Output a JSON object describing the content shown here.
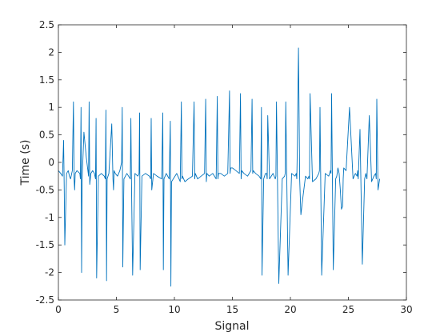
{
  "chart_data": {
    "type": "line",
    "title": "",
    "xlabel": "Signal",
    "ylabel": "Time (s)",
    "xlim": [
      0,
      30
    ],
    "ylim": [
      -2.5,
      2.5
    ],
    "xticks": [
      0,
      5,
      10,
      15,
      20,
      25,
      30
    ],
    "yticks": [
      -2.5,
      -2,
      -1.5,
      -1,
      -0.5,
      0,
      0.5,
      1,
      1.5,
      2,
      2.5
    ],
    "xtick_labels": [
      "0",
      "5",
      "10",
      "15",
      "20",
      "25",
      "30"
    ],
    "ytick_labels": [
      "-2.5",
      "-2",
      "-1.5",
      "-1",
      "-0.5",
      "0",
      "0.5",
      "1",
      "1.5",
      "2",
      "2.5"
    ],
    "grid": false,
    "line_color": "#0072bd",
    "series": [
      {
        "x": [
          0.0,
          0.2,
          0.35,
          0.45,
          0.5,
          0.55,
          0.7,
          0.85,
          0.95,
          1.05,
          1.2,
          1.3,
          1.35,
          1.4,
          1.45,
          1.6,
          1.85,
          1.9,
          1.95,
          2.0,
          2.05,
          2.2,
          2.4,
          2.6,
          2.65,
          2.7,
          2.8,
          2.95,
          3.1,
          3.2,
          3.25,
          3.3,
          3.45,
          3.7,
          3.95,
          4.05,
          4.1,
          4.15,
          4.2,
          4.35,
          4.6,
          4.7,
          4.75,
          4.8,
          4.9,
          5.1,
          5.3,
          5.45,
          5.5,
          5.55,
          5.65,
          5.9,
          6.05,
          6.2,
          6.25,
          6.3,
          6.4,
          6.6,
          6.85,
          6.95,
          7.0,
          7.05,
          7.2,
          7.5,
          7.85,
          7.95,
          8.0,
          8.05,
          8.2,
          8.5,
          8.9,
          9.0,
          9.05,
          9.1,
          9.3,
          9.55,
          9.65,
          9.7,
          9.75,
          9.9,
          10.2,
          10.5,
          10.6,
          10.65,
          10.7,
          10.9,
          11.2,
          11.55,
          11.7,
          11.75,
          11.8,
          12.0,
          12.3,
          12.6,
          12.7,
          12.75,
          12.8,
          13.0,
          13.3,
          13.6,
          13.7,
          13.75,
          13.8,
          14.0,
          14.3,
          14.6,
          14.75,
          14.8,
          14.85,
          15.0,
          15.3,
          15.6,
          15.7,
          15.75,
          15.8,
          16.0,
          16.3,
          16.6,
          16.7,
          16.75,
          16.8,
          17.0,
          17.3,
          17.45,
          17.5,
          17.55,
          17.7,
          17.85,
          17.95,
          18.0,
          18.05,
          18.2,
          18.5,
          18.7,
          18.75,
          18.8,
          19.0,
          19.3,
          19.5,
          19.55,
          19.6,
          19.8,
          20.1,
          20.4,
          20.5,
          20.55,
          20.6,
          20.65,
          20.7,
          20.8,
          20.9,
          21.1,
          21.3,
          21.5,
          21.6,
          21.65,
          21.7,
          21.9,
          22.2,
          22.45,
          22.5,
          22.55,
          22.7,
          23.0,
          23.3,
          23.45,
          23.5,
          23.55,
          23.7,
          23.9,
          24.0,
          24.1,
          24.2,
          24.3,
          24.4,
          24.5,
          24.55,
          24.6,
          24.8,
          25.1,
          25.4,
          25.6,
          25.75,
          25.8,
          25.85,
          26.0,
          26.2,
          26.4,
          26.5,
          26.55,
          26.6,
          26.8,
          27.0,
          27.2,
          27.35,
          27.4,
          27.45,
          27.55,
          27.7
        ],
        "y": [
          -0.15,
          -0.2,
          -0.25,
          0.4,
          -0.5,
          -1.5,
          -0.2,
          -0.15,
          -0.25,
          -0.3,
          -0.15,
          1.1,
          -0.3,
          -0.5,
          -0.2,
          -0.15,
          -0.2,
          -0.3,
          1.0,
          -2.0,
          -0.3,
          0.55,
          0.1,
          -0.25,
          1.1,
          -0.4,
          -0.2,
          -0.15,
          -0.2,
          -0.3,
          0.8,
          -2.1,
          -0.25,
          -0.2,
          -0.25,
          -0.3,
          0.95,
          -2.15,
          -0.3,
          -0.2,
          0.7,
          -0.3,
          -0.5,
          -0.15,
          -0.2,
          -0.25,
          -0.15,
          0.0,
          1.0,
          -1.9,
          -0.3,
          -0.2,
          -0.25,
          -0.3,
          0.8,
          -0.3,
          -2.05,
          -0.2,
          -0.25,
          -0.2,
          0.9,
          -1.95,
          -0.25,
          -0.2,
          -0.25,
          -0.3,
          0.8,
          -0.5,
          -0.2,
          -0.25,
          -0.3,
          0.9,
          -1.95,
          -0.3,
          -0.2,
          -0.3,
          0.75,
          -2.25,
          -0.35,
          -0.3,
          -0.2,
          -0.35,
          1.1,
          -0.3,
          -0.25,
          -0.35,
          -0.3,
          -0.25,
          1.1,
          -0.3,
          -0.2,
          -0.3,
          -0.25,
          -0.2,
          1.15,
          -0.35,
          -0.2,
          -0.25,
          -0.2,
          -0.3,
          1.2,
          -0.3,
          -0.2,
          -0.2,
          -0.25,
          -0.2,
          1.3,
          -0.2,
          -0.1,
          -0.1,
          -0.15,
          -0.2,
          1.25,
          -0.3,
          -0.15,
          -0.2,
          -0.25,
          -0.15,
          1.15,
          -0.2,
          -0.15,
          -0.2,
          -0.25,
          -0.3,
          1.0,
          -2.05,
          -0.3,
          -0.2,
          -0.2,
          -0.3,
          0.85,
          -0.3,
          -0.2,
          -0.3,
          -0.25,
          1.1,
          -2.2,
          -0.3,
          -0.25,
          -0.2,
          1.1,
          -2.05,
          -0.2,
          -0.25,
          -0.2,
          -0.3,
          0.3,
          1.25,
          2.08,
          -0.3,
          -0.95,
          -0.6,
          -0.25,
          -0.3,
          -0.25,
          -0.3,
          1.25,
          -0.35,
          -0.3,
          -0.2,
          -0.15,
          1.0,
          -2.05,
          -0.2,
          -0.25,
          -0.15,
          -0.2,
          1.25,
          -1.95,
          -0.3,
          -0.25,
          -0.1,
          -0.2,
          -0.5,
          -0.85,
          -0.8,
          -0.3,
          -0.1,
          -0.15,
          1.0,
          -0.3,
          -0.2,
          -0.25,
          -0.15,
          -0.3,
          0.6,
          -1.85,
          -0.3,
          -0.2,
          -0.25,
          -0.3,
          0.85,
          -0.35,
          -0.25,
          -0.2,
          -0.3,
          1.15,
          -0.5,
          -0.3
        ]
      }
    ]
  }
}
